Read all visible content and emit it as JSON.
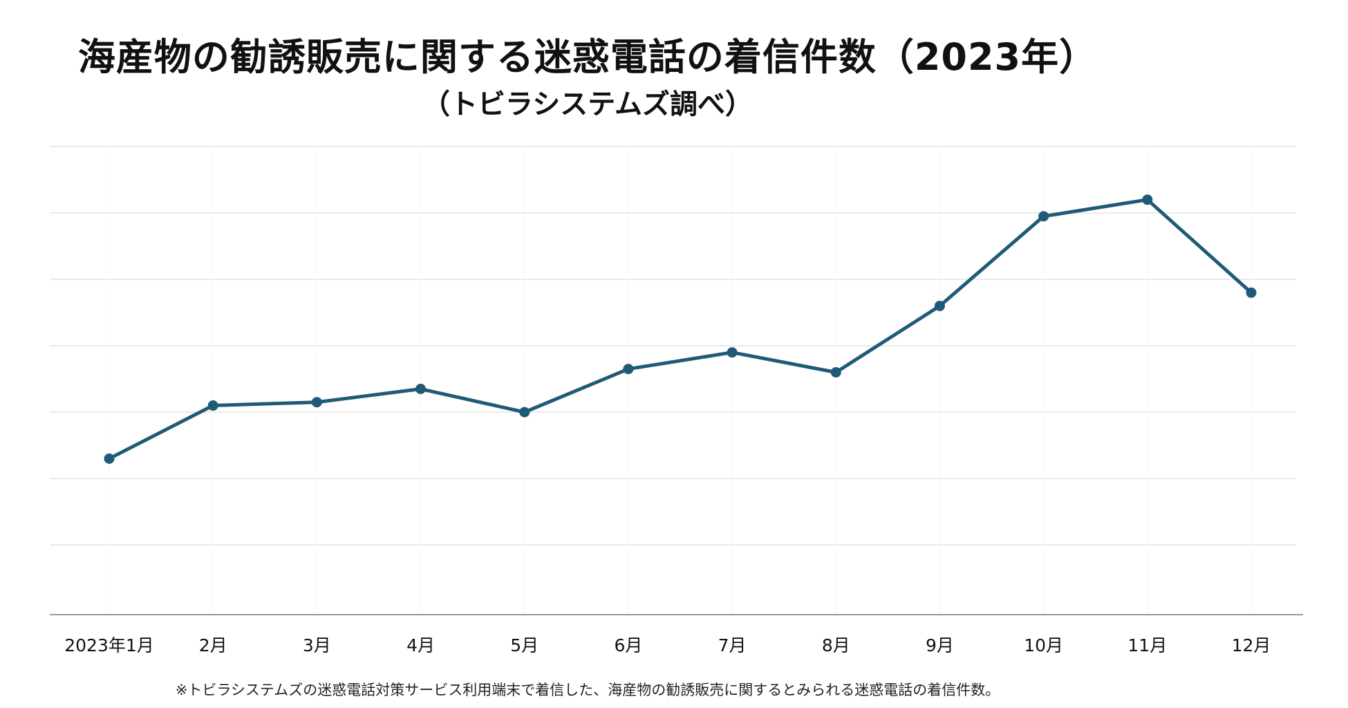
{
  "chart_data": {
    "type": "line",
    "title": "海産物の勧誘販売に関する迷惑電話の着信件数（2023年）",
    "subtitle": "（トビラシステムズ調べ）",
    "categories": [
      "2023年1月",
      "2月",
      "3月",
      "4月",
      "5月",
      "6月",
      "7月",
      "8月",
      "9月",
      "10月",
      "11月",
      "12月"
    ],
    "series": [
      {
        "name": "着信件数",
        "values": [
          23,
          31,
          31.5,
          33.5,
          30,
          36.5,
          39,
          36,
          46,
          59.5,
          62,
          48
        ]
      }
    ],
    "ylim": [
      -0.5,
      70
    ],
    "grid": true,
    "xlabel": "",
    "ylabel": "",
    "line_color": "#1f5a78",
    "grid_color": "#e3e3e3",
    "axis_color": "#999999",
    "footnote": "※トビラシステムズの迷惑電話対策サービス利用端末で着信した、海産物の勧誘販売に関するとみられる迷惑電話の着信件数。"
  }
}
